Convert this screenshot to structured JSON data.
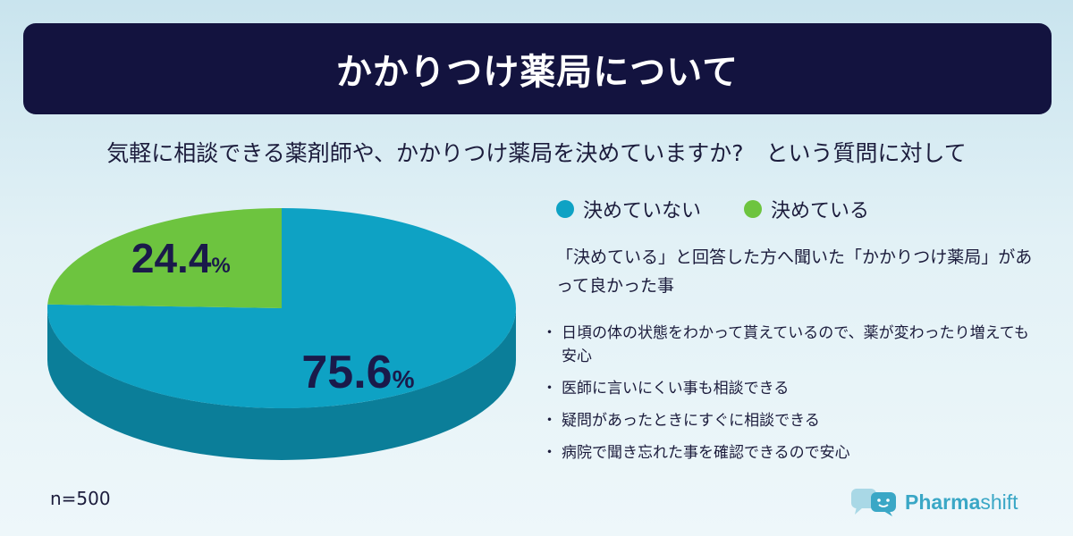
{
  "header": {
    "title": "かかりつけ薬局について"
  },
  "question": "気軽に相談できる薬剤師や、かかりつけ薬局を決めていますか?　という質問に対して",
  "chart_data": {
    "type": "pie",
    "categories": [
      "決めていない",
      "決めている"
    ],
    "values": [
      75.6,
      24.4
    ],
    "labels": [
      "75.6",
      "24.4"
    ],
    "unit": "%",
    "colors": [
      "#0ea2c4",
      "#6dc43f"
    ],
    "legend_position": "top-right"
  },
  "legend": [
    {
      "label": "決めていない",
      "color": "#0ea2c4"
    },
    {
      "label": "決めている",
      "color": "#6dc43f"
    }
  ],
  "answers": {
    "heading": "「決めている」と回答した方へ聞いた「かかりつけ薬局」があって良かった事",
    "items": [
      "日頃の体の状態をわかって貰えているので、薬が変わったり増えても安心",
      "医師に言いにくい事も相談できる",
      "疑問があったときにすぐに相談できる",
      "病院で聞き忘れた事を確認できるので安心"
    ]
  },
  "footer": {
    "sample_size": "n=500",
    "brand_prefix": "Pharma",
    "brand_suffix": "shift"
  }
}
